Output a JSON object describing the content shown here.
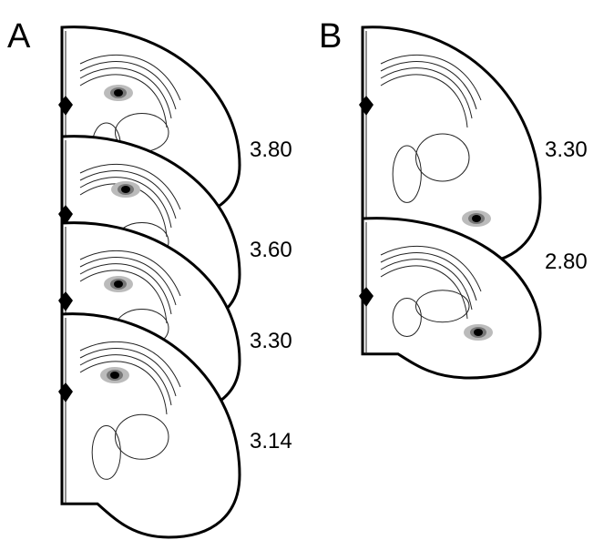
{
  "panels": [
    {
      "label": "A",
      "sections": [
        "3.80",
        "3.60",
        "3.30",
        "3.14"
      ]
    },
    {
      "label": "B",
      "sections": [
        "3.30",
        "2.80"
      ]
    }
  ]
}
